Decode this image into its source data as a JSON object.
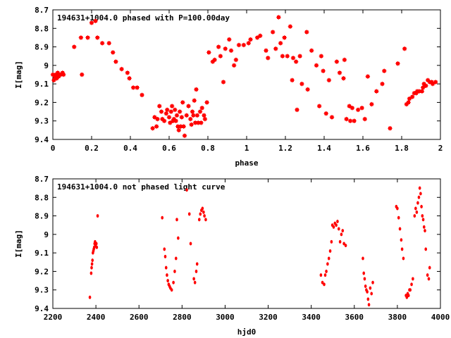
{
  "chart_data": [
    {
      "type": "scatter",
      "title": "194631+1004.0 phased with P=100.00day",
      "xlabel": "phase",
      "ylabel": "I[mag]",
      "xlim": [
        0,
        2
      ],
      "ylim": [
        8.7,
        9.4
      ],
      "y_inverted": true,
      "grid": false,
      "marker_color": "#ff0000",
      "x_ticks": [
        0,
        0.2,
        0.4,
        0.6,
        0.8,
        1,
        1.2,
        1.4,
        1.6,
        1.8,
        2
      ],
      "x_tick_labels": [
        "0",
        "0.2",
        "0.4",
        "0.6",
        "0.8",
        "1",
        "1.2",
        "1.4",
        "1.6",
        "1.8",
        "2"
      ],
      "y_ticks": [
        8.7,
        8.8,
        8.9,
        9.0,
        9.1,
        9.2,
        9.3,
        9.4
      ],
      "y_tick_labels": [
        "8.7",
        "8.8",
        "8.9",
        "9",
        "9.1",
        "9.2",
        "9.3",
        "9.4"
      ],
      "points": [
        [
          0.0,
          9.05
        ],
        [
          0.005,
          9.08
        ],
        [
          0.01,
          9.06
        ],
        [
          0.015,
          9.05
        ],
        [
          0.02,
          9.07
        ],
        [
          0.025,
          9.04
        ],
        [
          0.03,
          9.06
        ],
        [
          0.035,
          9.05
        ],
        [
          0.04,
          9.05
        ],
        [
          0.05,
          9.04
        ],
        [
          0.055,
          9.05
        ],
        [
          0.11,
          8.9
        ],
        [
          0.145,
          8.85
        ],
        [
          0.15,
          9.05
        ],
        [
          0.18,
          8.85
        ],
        [
          0.2,
          8.77
        ],
        [
          0.22,
          8.76
        ],
        [
          0.23,
          8.85
        ],
        [
          0.255,
          8.88
        ],
        [
          0.29,
          8.88
        ],
        [
          0.31,
          8.93
        ],
        [
          0.325,
          8.98
        ],
        [
          0.355,
          9.02
        ],
        [
          0.385,
          9.04
        ],
        [
          0.395,
          9.07
        ],
        [
          0.415,
          9.12
        ],
        [
          0.435,
          9.12
        ],
        [
          0.46,
          9.16
        ],
        [
          0.515,
          9.34
        ],
        [
          0.525,
          9.28
        ],
        [
          0.535,
          9.33
        ],
        [
          0.54,
          9.29
        ],
        [
          0.55,
          9.22
        ],
        [
          0.56,
          9.25
        ],
        [
          0.565,
          9.29
        ],
        [
          0.575,
          9.3
        ],
        [
          0.585,
          9.26
        ],
        [
          0.59,
          9.24
        ],
        [
          0.6,
          9.28
        ],
        [
          0.605,
          9.31
        ],
        [
          0.61,
          9.25
        ],
        [
          0.615,
          9.22
        ],
        [
          0.62,
          9.3
        ],
        [
          0.625,
          9.29
        ],
        [
          0.63,
          9.24
        ],
        [
          0.635,
          9.3
        ],
        [
          0.64,
          9.27
        ],
        [
          0.645,
          9.33
        ],
        [
          0.65,
          9.35
        ],
        [
          0.655,
          9.25
        ],
        [
          0.66,
          9.33
        ],
        [
          0.665,
          9.28
        ],
        [
          0.67,
          9.2
        ],
        [
          0.675,
          9.33
        ],
        [
          0.68,
          9.38
        ],
        [
          0.69,
          9.27
        ],
        [
          0.7,
          9.22
        ],
        [
          0.71,
          9.29
        ],
        [
          0.715,
          9.32
        ],
        [
          0.72,
          9.25
        ],
        [
          0.725,
          9.27
        ],
        [
          0.73,
          9.19
        ],
        [
          0.735,
          9.31
        ],
        [
          0.74,
          9.13
        ],
        [
          0.745,
          9.27
        ],
        [
          0.75,
          9.31
        ],
        [
          0.76,
          9.25
        ],
        [
          0.765,
          9.31
        ],
        [
          0.77,
          9.23
        ],
        [
          0.78,
          9.27
        ],
        [
          0.785,
          9.29
        ],
        [
          0.795,
          9.2
        ],
        [
          0.805,
          8.93
        ],
        [
          0.825,
          8.98
        ],
        [
          0.835,
          8.97
        ],
        [
          0.855,
          8.9
        ],
        [
          0.865,
          8.95
        ],
        [
          0.88,
          9.09
        ],
        [
          0.89,
          8.91
        ],
        [
          0.91,
          8.86
        ],
        [
          0.92,
          8.92
        ],
        [
          0.935,
          9.0
        ],
        [
          0.945,
          8.97
        ],
        [
          0.96,
          8.89
        ],
        [
          0.985,
          8.89
        ],
        [
          1.01,
          8.88
        ],
        [
          1.02,
          8.86
        ],
        [
          1.055,
          8.85
        ],
        [
          1.07,
          8.84
        ],
        [
          1.1,
          8.92
        ],
        [
          1.11,
          8.96
        ],
        [
          1.135,
          8.82
        ],
        [
          1.15,
          8.91
        ],
        [
          1.165,
          8.74
        ],
        [
          1.175,
          8.88
        ],
        [
          1.185,
          8.95
        ],
        [
          1.195,
          8.85
        ],
        [
          1.21,
          8.95
        ],
        [
          1.225,
          8.79
        ],
        [
          1.235,
          9.08
        ],
        [
          1.24,
          8.96
        ],
        [
          1.255,
          8.98
        ],
        [
          1.26,
          9.24
        ],
        [
          1.275,
          8.95
        ],
        [
          1.285,
          9.1
        ],
        [
          1.31,
          8.82
        ],
        [
          1.315,
          9.13
        ],
        [
          1.335,
          8.92
        ],
        [
          1.36,
          9.0
        ],
        [
          1.375,
          9.22
        ],
        [
          1.385,
          8.95
        ],
        [
          1.395,
          9.03
        ],
        [
          1.41,
          9.26
        ],
        [
          1.425,
          9.08
        ],
        [
          1.44,
          9.28
        ],
        [
          1.465,
          8.98
        ],
        [
          1.48,
          9.04
        ],
        [
          1.5,
          9.07
        ],
        [
          1.505,
          8.97
        ],
        [
          1.515,
          9.29
        ],
        [
          1.53,
          9.22
        ],
        [
          1.535,
          9.3
        ],
        [
          1.545,
          9.23
        ],
        [
          1.555,
          9.3
        ],
        [
          1.575,
          9.24
        ],
        [
          1.595,
          9.23
        ],
        [
          1.61,
          9.29
        ],
        [
          1.625,
          9.06
        ],
        [
          1.645,
          9.21
        ],
        [
          1.67,
          9.14
        ],
        [
          1.7,
          9.1
        ],
        [
          1.71,
          9.03
        ],
        [
          1.74,
          9.34
        ],
        [
          1.78,
          8.99
        ],
        [
          1.815,
          8.91
        ],
        [
          1.825,
          9.21
        ],
        [
          1.835,
          9.2
        ],
        [
          1.84,
          9.18
        ],
        [
          1.855,
          9.17
        ],
        [
          1.865,
          9.15
        ],
        [
          1.875,
          9.15
        ],
        [
          1.88,
          9.14
        ],
        [
          1.89,
          9.14
        ],
        [
          1.905,
          9.14
        ],
        [
          1.91,
          9.12
        ],
        [
          1.915,
          9.1
        ],
        [
          1.925,
          9.11
        ],
        [
          1.935,
          9.08
        ],
        [
          1.945,
          9.09
        ],
        [
          1.955,
          9.09
        ],
        [
          1.96,
          9.1
        ],
        [
          1.975,
          9.09
        ]
      ]
    },
    {
      "type": "scatter",
      "title": "194631+1004.0 not phased light curve",
      "xlabel": "hjd0",
      "ylabel": "I[mag]",
      "xlim": [
        2200,
        4000
      ],
      "ylim": [
        8.7,
        9.4
      ],
      "y_inverted": true,
      "grid": false,
      "marker_color": "#ff0000",
      "x_ticks": [
        2200,
        2400,
        2600,
        2800,
        3000,
        3200,
        3400,
        3600,
        3800,
        4000
      ],
      "x_tick_labels": [
        "2200",
        "2400",
        "2600",
        "2800",
        "3000",
        "3200",
        "3400",
        "3600",
        "3800",
        "4000"
      ],
      "y_ticks": [
        8.7,
        8.8,
        8.9,
        9.0,
        9.1,
        9.2,
        9.3,
        9.4
      ],
      "y_tick_labels": [
        "8.7",
        "8.8",
        "8.9",
        "9",
        "9.1",
        "9.2",
        "9.3",
        "9.4"
      ],
      "points": [
        [
          2372,
          9.34
        ],
        [
          2378,
          9.21
        ],
        [
          2380,
          9.18
        ],
        [
          2382,
          9.16
        ],
        [
          2384,
          9.14
        ],
        [
          2386,
          9.1
        ],
        [
          2388,
          9.09
        ],
        [
          2390,
          9.08
        ],
        [
          2392,
          9.07
        ],
        [
          2394,
          9.05
        ],
        [
          2396,
          9.04
        ],
        [
          2398,
          9.06
        ],
        [
          2400,
          9.05
        ],
        [
          2402,
          9.05
        ],
        [
          2404,
          9.07
        ],
        [
          2408,
          8.9
        ],
        [
          2708,
          8.91
        ],
        [
          2718,
          9.08
        ],
        [
          2722,
          9.12
        ],
        [
          2726,
          9.18
        ],
        [
          2730,
          9.22
        ],
        [
          2734,
          9.25
        ],
        [
          2738,
          9.27
        ],
        [
          2742,
          9.28
        ],
        [
          2746,
          9.29
        ],
        [
          2752,
          9.3
        ],
        [
          2760,
          9.26
        ],
        [
          2766,
          9.2
        ],
        [
          2772,
          9.13
        ],
        [
          2776,
          8.92
        ],
        [
          2782,
          9.02
        ],
        [
          2822,
          8.76
        ],
        [
          2834,
          8.89
        ],
        [
          2840,
          9.05
        ],
        [
          2855,
          9.24
        ],
        [
          2860,
          9.26
        ],
        [
          2866,
          9.2
        ],
        [
          2870,
          9.16
        ],
        [
          2880,
          8.92
        ],
        [
          2885,
          8.89
        ],
        [
          2890,
          8.87
        ],
        [
          2895,
          8.86
        ],
        [
          2900,
          8.88
        ],
        [
          2904,
          8.9
        ],
        [
          2910,
          8.92
        ],
        [
          3445,
          9.22
        ],
        [
          3452,
          9.26
        ],
        [
          3460,
          9.27
        ],
        [
          3465,
          9.22
        ],
        [
          3470,
          9.2
        ],
        [
          3476,
          9.16
        ],
        [
          3482,
          9.13
        ],
        [
          3488,
          9.09
        ],
        [
          3494,
          9.04
        ],
        [
          3498,
          8.95
        ],
        [
          3504,
          8.96
        ],
        [
          3510,
          8.94
        ],
        [
          3516,
          8.95
        ],
        [
          3522,
          8.93
        ],
        [
          3528,
          8.97
        ],
        [
          3534,
          9.04
        ],
        [
          3540,
          9.0
        ],
        [
          3546,
          8.98
        ],
        [
          3552,
          9.05
        ],
        [
          3560,
          9.06
        ],
        [
          3640,
          9.13
        ],
        [
          3644,
          9.21
        ],
        [
          3648,
          9.24
        ],
        [
          3652,
          9.28
        ],
        [
          3656,
          9.3
        ],
        [
          3660,
          9.31
        ],
        [
          3664,
          9.35
        ],
        [
          3668,
          9.38
        ],
        [
          3674,
          9.29
        ],
        [
          3680,
          9.32
        ],
        [
          3686,
          9.26
        ],
        [
          3795,
          8.85
        ],
        [
          3800,
          8.86
        ],
        [
          3806,
          8.91
        ],
        [
          3812,
          8.97
        ],
        [
          3818,
          9.03
        ],
        [
          3822,
          9.08
        ],
        [
          3828,
          9.13
        ],
        [
          3840,
          9.33
        ],
        [
          3844,
          9.34
        ],
        [
          3848,
          9.32
        ],
        [
          3852,
          9.33
        ],
        [
          3856,
          9.3
        ],
        [
          3860,
          9.3
        ],
        [
          3866,
          9.27
        ],
        [
          3872,
          9.24
        ],
        [
          3880,
          8.9
        ],
        [
          3885,
          8.86
        ],
        [
          3890,
          8.88
        ],
        [
          3895,
          8.83
        ],
        [
          3900,
          8.8
        ],
        [
          3904,
          8.75
        ],
        [
          3908,
          8.78
        ],
        [
          3912,
          8.85
        ],
        [
          3916,
          8.9
        ],
        [
          3920,
          8.92
        ],
        [
          3924,
          8.96
        ],
        [
          3928,
          8.98
        ],
        [
          3932,
          9.08
        ],
        [
          3940,
          9.22
        ],
        [
          3946,
          9.24
        ],
        [
          3950,
          9.18
        ]
      ]
    }
  ]
}
